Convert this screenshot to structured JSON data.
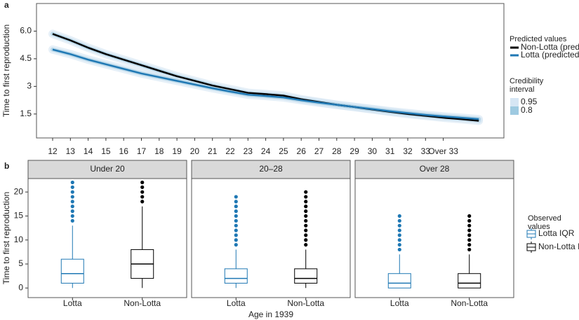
{
  "chart_data": [
    {
      "type": "line",
      "label": "a",
      "ylabel": "Time to first reproduction",
      "categories": [
        "12",
        "13",
        "14",
        "15",
        "16",
        "17",
        "18",
        "19",
        "20",
        "21",
        "22",
        "23",
        "24",
        "25",
        "26",
        "27",
        "28",
        "29",
        "30",
        "31",
        "32",
        "33",
        "Over 33",
        null,
        null
      ],
      "series": [
        {
          "name": "Non-Lotta (predicted)",
          "color": "#000000",
          "values": [
            5.85,
            5.5,
            5.1,
            4.75,
            4.45,
            4.15,
            3.85,
            3.55,
            3.3,
            3.05,
            2.85,
            2.65,
            2.58,
            2.5,
            2.3,
            2.15,
            2.0,
            1.88,
            1.75,
            1.62,
            1.5,
            1.4,
            1.3,
            1.22,
            1.13
          ]
        },
        {
          "name": "Lotta (predicted)",
          "color": "#1f78b4",
          "values": [
            5.0,
            4.75,
            4.45,
            4.2,
            3.95,
            3.7,
            3.5,
            3.3,
            3.1,
            2.9,
            2.72,
            2.55,
            2.48,
            2.4,
            2.25,
            2.12,
            2.0,
            1.88,
            1.77,
            1.65,
            1.55,
            1.45,
            1.37,
            1.3,
            1.22
          ]
        }
      ],
      "legend_title": "Predicted values",
      "interval_title": "Credibility interval",
      "intervals": [
        {
          "name": "0.95",
          "color": "#d6e6f4"
        },
        {
          "name": "0.8",
          "color": "#9ecae1"
        }
      ],
      "ylim": [
        0.2,
        7.5
      ],
      "yticks": [
        1.5,
        3,
        {
          "value": 4.5,
          "label": "4.5"
        },
        {
          "value": 6,
          "label": "6.0"
        }
      ]
    },
    {
      "type": "box",
      "label": "b",
      "ylabel": "Time to first reproduction",
      "xlabel": "Age in 1939",
      "categories": [
        "Lotta",
        "Non-Lotta"
      ],
      "colors": [
        "#1f78b4",
        "#000000"
      ],
      "legend_title": "Observed values",
      "legend": [
        "Lotta IQR",
        "Non-Lotta IQR"
      ],
      "ylim": [
        -2,
        22.8
      ],
      "yticks": [
        0,
        5,
        10,
        15,
        20
      ],
      "facets": [
        {
          "title": "Under 20",
          "boxes": [
            {
              "min": 0,
              "q1": 1,
              "median": 3,
              "q3": 6,
              "max": 13,
              "outliers": [
                14,
                15,
                16,
                17,
                18,
                19,
                20,
                21,
                22
              ]
            },
            {
              "min": 0,
              "q1": 2,
              "median": 5,
              "q3": 8,
              "max": 17,
              "outliers": [
                18,
                19,
                20,
                21,
                22
              ]
            }
          ]
        },
        {
          "title": "20–28",
          "boxes": [
            {
              "min": 0,
              "q1": 1,
              "median": 2,
              "q3": 4,
              "max": 8,
              "outliers": [
                9,
                10,
                11,
                12,
                13,
                14,
                15,
                16,
                17,
                18,
                19
              ]
            },
            {
              "min": 0,
              "q1": 1,
              "median": 2,
              "q3": 4,
              "max": 8,
              "outliers": [
                9,
                10,
                11,
                12,
                13,
                14,
                15,
                16,
                17,
                18,
                19,
                20
              ]
            }
          ]
        },
        {
          "title": "Over 28",
          "boxes": [
            {
              "min": 0,
              "q1": 0,
              "median": 1,
              "q3": 3,
              "max": 7,
              "outliers": [
                8,
                9,
                10,
                11,
                12,
                13,
                14,
                15
              ]
            },
            {
              "min": 0,
              "q1": 0,
              "median": 1,
              "q3": 3,
              "max": 7,
              "outliers": [
                8,
                9,
                10,
                11,
                12,
                13,
                14,
                15
              ]
            }
          ]
        }
      ]
    }
  ]
}
